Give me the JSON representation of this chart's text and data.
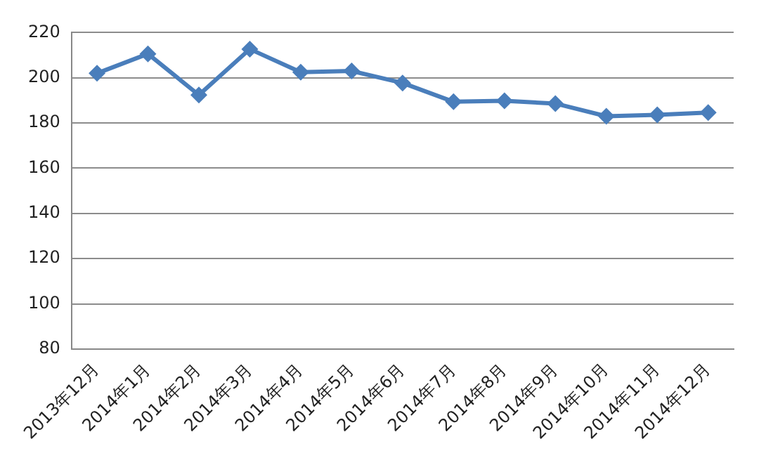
{
  "chart_data": {
    "type": "line",
    "categories": [
      "2013年12月",
      "2014年1月",
      "2014年2月",
      "2014年3月",
      "2014年4月",
      "2014年5月",
      "2014年6月",
      "2014年7月",
      "2014年8月",
      "2014年9月",
      "2014年10月",
      "2014年11月",
      "2014年12月"
    ],
    "series": [
      {
        "color": "#4a7ebb",
        "values": [
          202,
          210.6,
          192.4,
          212.7,
          202.5,
          203,
          197.7,
          189.4,
          189.8,
          188.6,
          183,
          183.6,
          184.6
        ]
      }
    ],
    "ylim": [
      80,
      220
    ],
    "yticks": [
      80,
      100,
      120,
      140,
      160,
      180,
      200,
      220
    ],
    "grid": "y",
    "legend": false,
    "marker": "diamond",
    "line_style": "solid"
  }
}
